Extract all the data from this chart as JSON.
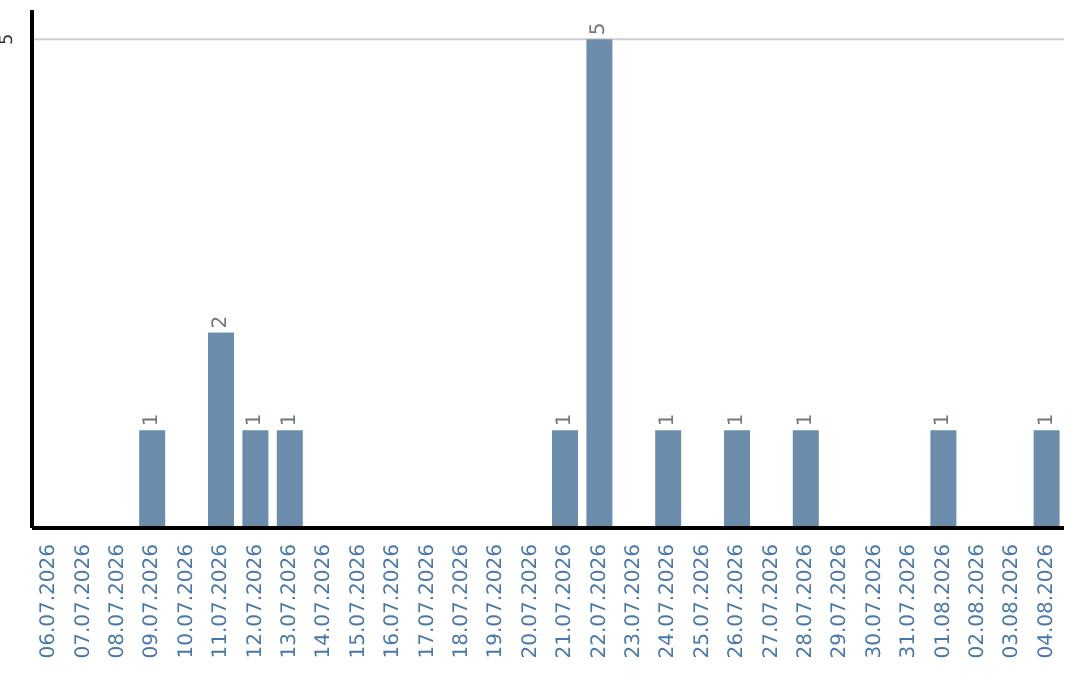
{
  "chart_data": {
    "type": "bar",
    "categories": [
      "06.07.2026",
      "07.07.2026",
      "08.07.2026",
      "09.07.2026",
      "10.07.2026",
      "11.07.2026",
      "12.07.2026",
      "13.07.2026",
      "14.07.2026",
      "15.07.2026",
      "16.07.2026",
      "17.07.2026",
      "18.07.2026",
      "19.07.2026",
      "20.07.2026",
      "21.07.2026",
      "22.07.2026",
      "23.07.2026",
      "24.07.2026",
      "25.07.2026",
      "26.07.2026",
      "27.07.2026",
      "28.07.2026",
      "29.07.2026",
      "30.07.2026",
      "31.07.2026",
      "01.08.2026",
      "02.08.2026",
      "03.08.2026",
      "04.08.2026"
    ],
    "values": [
      0,
      0,
      0,
      1,
      0,
      2,
      1,
      1,
      0,
      0,
      0,
      0,
      0,
      0,
      0,
      1,
      5,
      0,
      1,
      0,
      1,
      0,
      1,
      0,
      0,
      0,
      1,
      0,
      0,
      1
    ],
    "value_labels": [
      null,
      null,
      null,
      "1",
      null,
      "2",
      "1",
      "1",
      null,
      null,
      null,
      null,
      null,
      null,
      null,
      "1",
      "5",
      null,
      "1",
      null,
      "1",
      null,
      "1",
      null,
      null,
      null,
      "1",
      null,
      null,
      "1"
    ],
    "color": "#6b8cab",
    "ylim": [
      0,
      5.3
    ],
    "yticks": [
      5
    ],
    "grid": "y"
  }
}
